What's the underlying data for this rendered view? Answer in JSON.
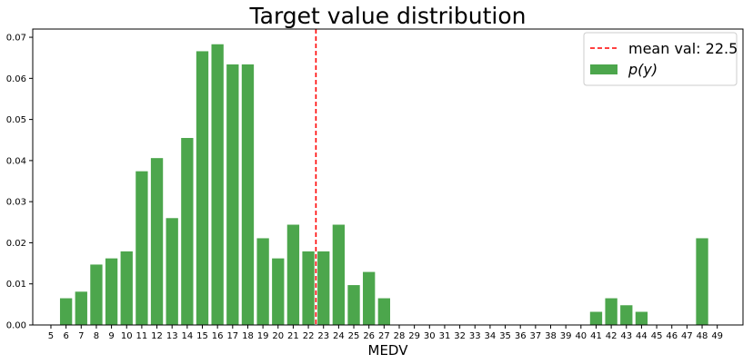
{
  "chart_data": {
    "type": "bar",
    "title": "Target value distribution",
    "xlabel": "MEDV",
    "ylabel": "",
    "ylim": [
      0,
      0.072
    ],
    "xlim": [
      3.8,
      50.7
    ],
    "yticks": [
      0.0,
      0.01,
      0.02,
      0.03,
      0.04,
      0.05,
      0.06,
      0.07
    ],
    "ytick_labels": [
      "0.00",
      "0.01",
      "0.02",
      "0.03",
      "0.04",
      "0.05",
      "0.06",
      "0.07"
    ],
    "xticks": [
      5,
      6,
      7,
      8,
      9,
      10,
      11,
      12,
      13,
      14,
      15,
      16,
      17,
      18,
      19,
      20,
      21,
      22,
      23,
      24,
      25,
      26,
      27,
      28,
      29,
      30,
      31,
      32,
      33,
      34,
      35,
      36,
      37,
      38,
      39,
      40,
      41,
      42,
      43,
      44,
      45,
      46,
      47,
      48,
      49
    ],
    "bar_color": "#4ca64c",
    "series": [
      {
        "name": "p(y)",
        "x": [
          6,
          7,
          8,
          9,
          10,
          11,
          12,
          13,
          14,
          15,
          16,
          17,
          18,
          19,
          20,
          21,
          22,
          23,
          24,
          25,
          26,
          27,
          28,
          29,
          30,
          31,
          32,
          33,
          34,
          35,
          36,
          41,
          42,
          43,
          44,
          45,
          48
        ],
        "values": [
          0.0065,
          0.0081,
          0.0147,
          0.0162,
          0.0179,
          0.0374,
          0.0406,
          0.026,
          0.0455,
          0.0666,
          0.0683,
          0.0634,
          0.0634,
          0.0211,
          0.0162,
          0.0244,
          0.0179,
          0.0179,
          0.0244,
          0.0097,
          0.0129,
          0.0065,
          0.0,
          0.0,
          0.0,
          0.0,
          0.0,
          0.0,
          0.0,
          0.0,
          0.0,
          0.0032,
          0.0065,
          0.0048,
          0.0032,
          0.0,
          0.0211
        ]
      }
    ],
    "reference_line": {
      "label": "mean val: 22.5",
      "x": 22.5,
      "color": "#ff0000",
      "style": "dashed"
    },
    "legend": {
      "placement": "top-right",
      "entries": [
        {
          "label": "mean val: 22.5",
          "kind": "line"
        },
        {
          "label": "p(y)",
          "kind": "patch"
        }
      ]
    },
    "grid": false
  }
}
